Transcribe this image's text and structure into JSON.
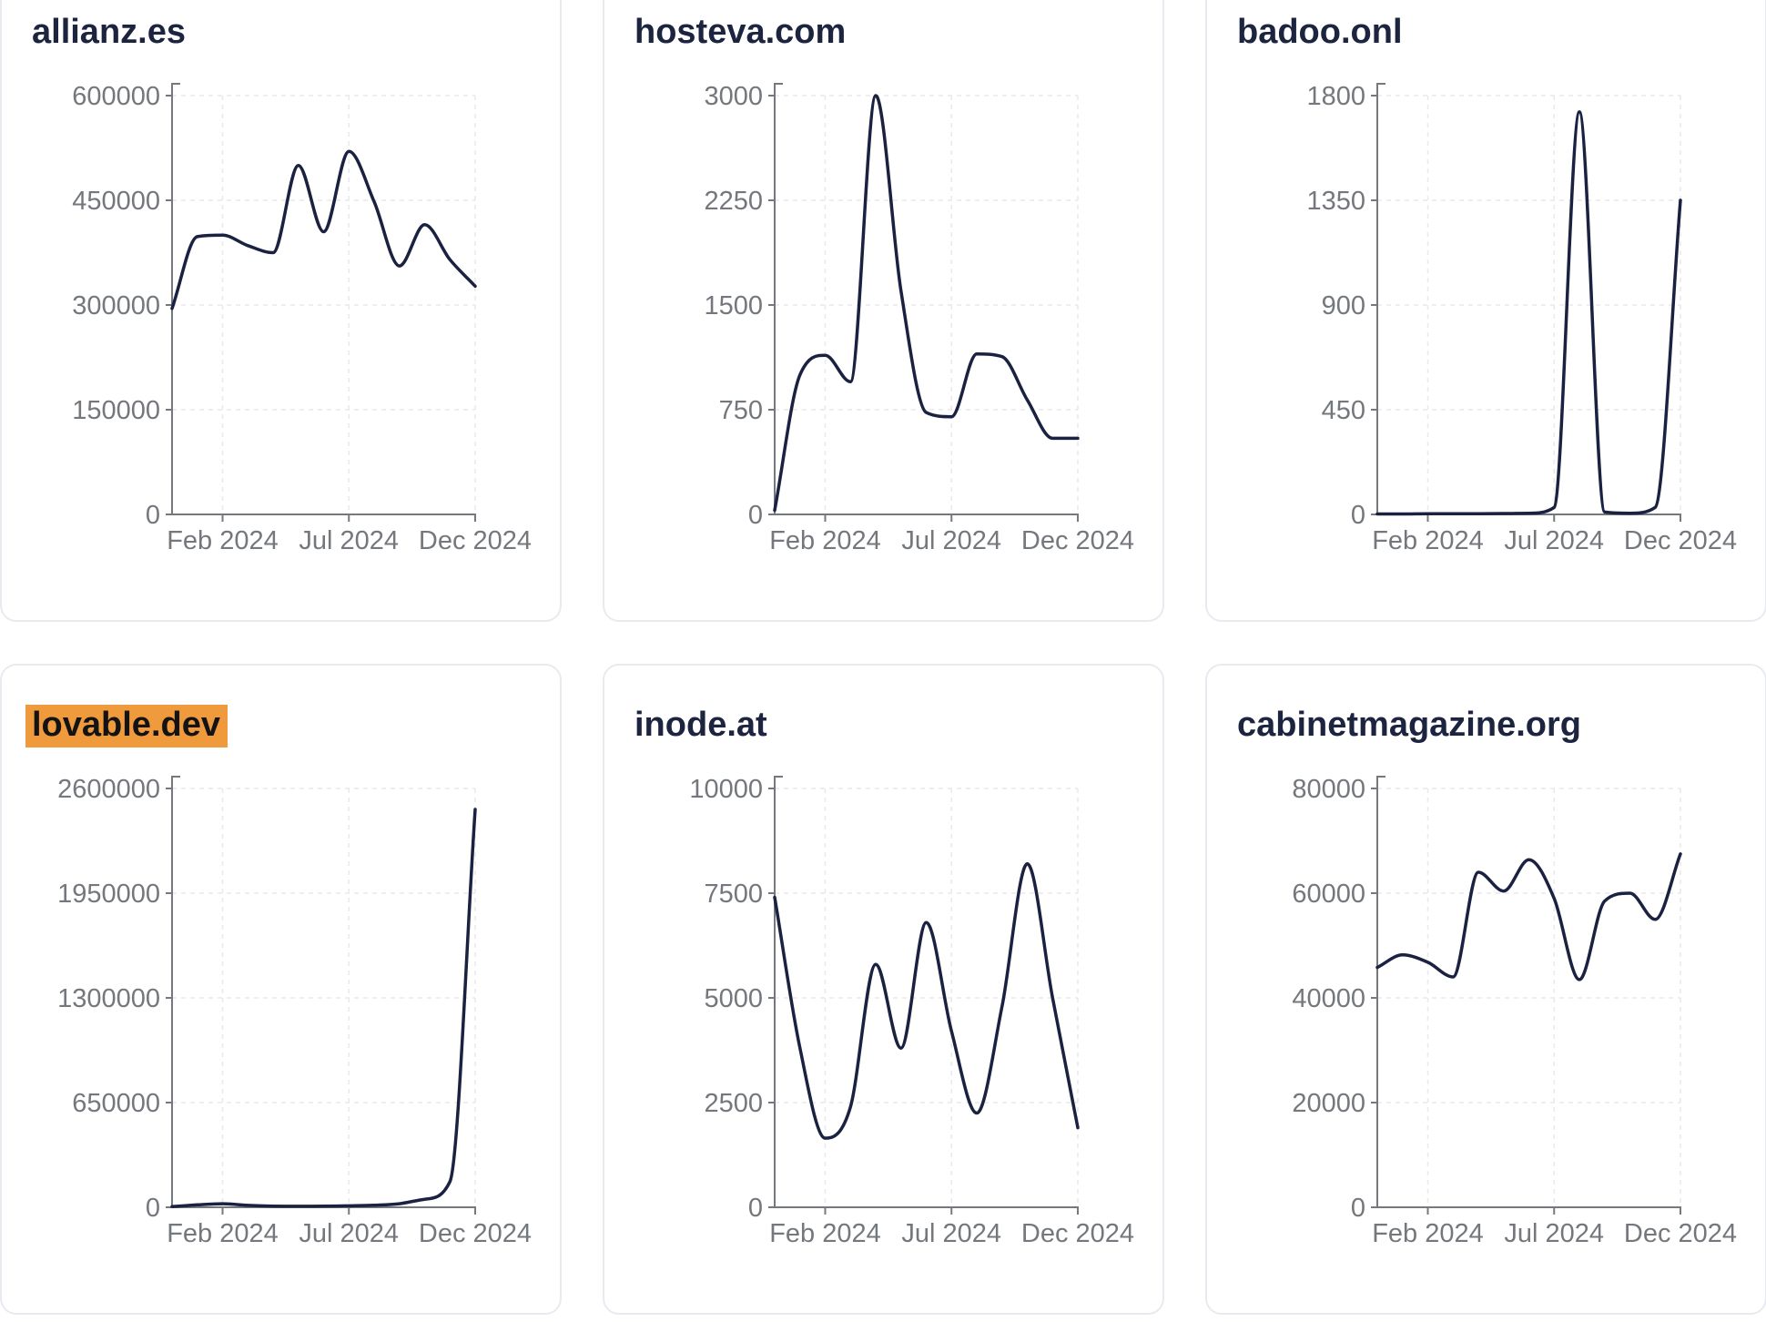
{
  "x_tick_labels": [
    "Feb 2024",
    "Jul 2024",
    "Dec 2024"
  ],
  "colors": {
    "background": "#ffffff",
    "card_border": "#e7ebf0",
    "title": "#1c2440",
    "highlight": "#f09a3e",
    "series_line": "#1b2140",
    "axis": "#75797e",
    "tick_text": "#74787d",
    "gridline": "#e9e9ec"
  },
  "chart_data": [
    {
      "type": "line",
      "title": "allianz.es",
      "highlighted": false,
      "ylim": [
        0,
        600000
      ],
      "y_ticks": [
        600000,
        450000,
        300000,
        150000,
        0
      ],
      "x": [
        "Dec 2023",
        "Jan 2024",
        "Feb 2024",
        "Mar 2024",
        "Apr 2024",
        "May 2024",
        "Jun 2024",
        "Jul 2024",
        "Aug 2024",
        "Sep 2024",
        "Oct 2024",
        "Nov 2024",
        "Dec 2024"
      ],
      "x_tick_labels": [
        "Feb 2024",
        "Jul 2024",
        "Dec 2024"
      ],
      "values": [
        295000,
        398000,
        400000,
        385000,
        375000,
        500000,
        405000,
        520000,
        448000,
        356000,
        415000,
        365000,
        327000
      ]
    },
    {
      "type": "line",
      "title": "hosteva.com",
      "highlighted": false,
      "ylim": [
        0,
        3000
      ],
      "y_ticks": [
        3000,
        2250,
        1500,
        750,
        0
      ],
      "x": [
        "Dec 2023",
        "Jan 2024",
        "Feb 2024",
        "Mar 2024",
        "Apr 2024",
        "May 2024",
        "Jun 2024",
        "Jul 2024",
        "Aug 2024",
        "Sep 2024",
        "Oct 2024",
        "Nov 2024",
        "Dec 2024"
      ],
      "x_tick_labels": [
        "Feb 2024",
        "Jul 2024",
        "Dec 2024"
      ],
      "values": [
        30,
        1000,
        1140,
        950,
        3000,
        1600,
        730,
        700,
        1150,
        1130,
        820,
        545,
        545
      ]
    },
    {
      "type": "line",
      "title": "badoo.onl",
      "highlighted": false,
      "ylim": [
        0,
        1800
      ],
      "y_ticks": [
        1800,
        1350,
        900,
        450,
        0
      ],
      "x": [
        "Dec 2023",
        "Jan 2024",
        "Feb 2024",
        "Mar 2024",
        "Apr 2024",
        "May 2024",
        "Jun 2024",
        "Jul 2024",
        "Aug 2024",
        "Sep 2024",
        "Oct 2024",
        "Nov 2024",
        "Dec 2024"
      ],
      "x_tick_labels": [
        "Feb 2024",
        "Jul 2024",
        "Dec 2024"
      ],
      "values": [
        2,
        2,
        3,
        3,
        3,
        4,
        5,
        30,
        1730,
        10,
        5,
        30,
        1350
      ]
    },
    {
      "type": "line",
      "title": "lovable.dev",
      "highlighted": true,
      "ylim": [
        0,
        2600000
      ],
      "y_ticks": [
        2600000,
        1950000,
        1300000,
        650000,
        0
      ],
      "x": [
        "Dec 2023",
        "Jan 2024",
        "Feb 2024",
        "Mar 2024",
        "Apr 2024",
        "May 2024",
        "Jun 2024",
        "Jul 2024",
        "Aug 2024",
        "Sep 2024",
        "Oct 2024",
        "Nov 2024",
        "Dec 2024"
      ],
      "x_tick_labels": [
        "Feb 2024",
        "Jul 2024",
        "Dec 2024"
      ],
      "values": [
        4000,
        15000,
        22000,
        12000,
        7000,
        6000,
        7000,
        9000,
        13000,
        22000,
        50000,
        160000,
        2470000
      ]
    },
    {
      "type": "line",
      "title": "inode.at",
      "highlighted": false,
      "ylim": [
        0,
        10000
      ],
      "y_ticks": [
        10000,
        7500,
        5000,
        2500,
        0
      ],
      "x": [
        "Dec 2023",
        "Jan 2024",
        "Feb 2024",
        "Mar 2024",
        "Apr 2024",
        "May 2024",
        "Jun 2024",
        "Jul 2024",
        "Aug 2024",
        "Sep 2024",
        "Oct 2024",
        "Nov 2024",
        "Dec 2024"
      ],
      "x_tick_labels": [
        "Feb 2024",
        "Jul 2024",
        "Dec 2024"
      ],
      "values": [
        7400,
        3800,
        1650,
        2400,
        5800,
        3800,
        6800,
        4200,
        2250,
        4800,
        8200,
        5000,
        1900
      ]
    },
    {
      "type": "line",
      "title": "cabinetmagazine.org",
      "highlighted": false,
      "ylim": [
        0,
        80000
      ],
      "y_ticks": [
        80000,
        60000,
        40000,
        20000,
        0
      ],
      "x": [
        "Dec 2023",
        "Jan 2024",
        "Feb 2024",
        "Mar 2024",
        "Apr 2024",
        "May 2024",
        "Jun 2024",
        "Jul 2024",
        "Aug 2024",
        "Sep 2024",
        "Oct 2024",
        "Nov 2024",
        "Dec 2024"
      ],
      "x_tick_labels": [
        "Feb 2024",
        "Jul 2024",
        "Dec 2024"
      ],
      "values": [
        45800,
        48200,
        46800,
        44000,
        64000,
        60400,
        66400,
        59000,
        43500,
        58500,
        60000,
        55000,
        67500
      ]
    }
  ]
}
